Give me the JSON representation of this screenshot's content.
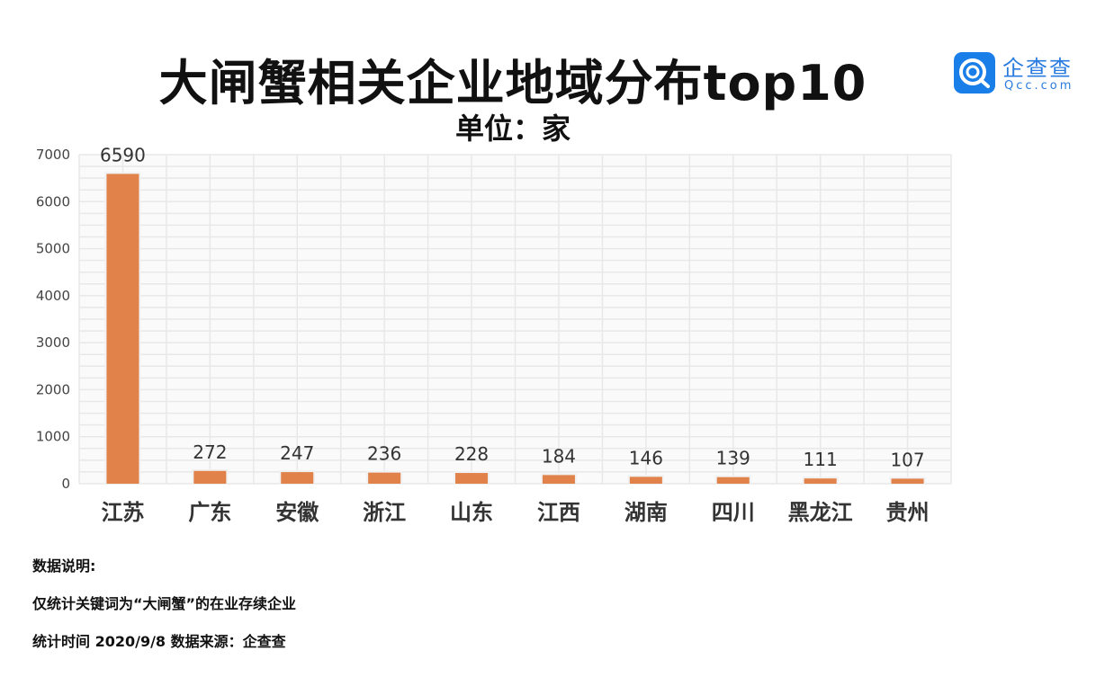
{
  "header": {
    "title": "大闸蟹相关企业地域分布top10",
    "unit": "单位：家"
  },
  "logo": {
    "name": "企查查",
    "domain": "Qcc.com"
  },
  "colors": {
    "bar": "#e0824a",
    "grid": "#e8e8e8"
  },
  "chart_data": {
    "type": "bar",
    "title": "大闸蟹相关企业地域分布top10",
    "subtitle": "单位：家",
    "categories": [
      "江苏",
      "广东",
      "安徽",
      "浙江",
      "山东",
      "江西",
      "湖南",
      "四川",
      "黑龙江",
      "贵州"
    ],
    "values": [
      6590,
      272,
      247,
      236,
      228,
      184,
      146,
      139,
      111,
      107
    ],
    "ylim": [
      0,
      7000
    ],
    "yticks": [
      0,
      1000,
      2000,
      3000,
      4000,
      5000,
      6000,
      7000
    ],
    "xlabel": "",
    "ylabel": "",
    "grid": true
  },
  "notes": {
    "heading": "数据说明:",
    "line1": "仅统计关键词为“大闸蟹”的在业存续企业",
    "line2": "统计时间 2020/9/8    数据来源：企查查"
  }
}
